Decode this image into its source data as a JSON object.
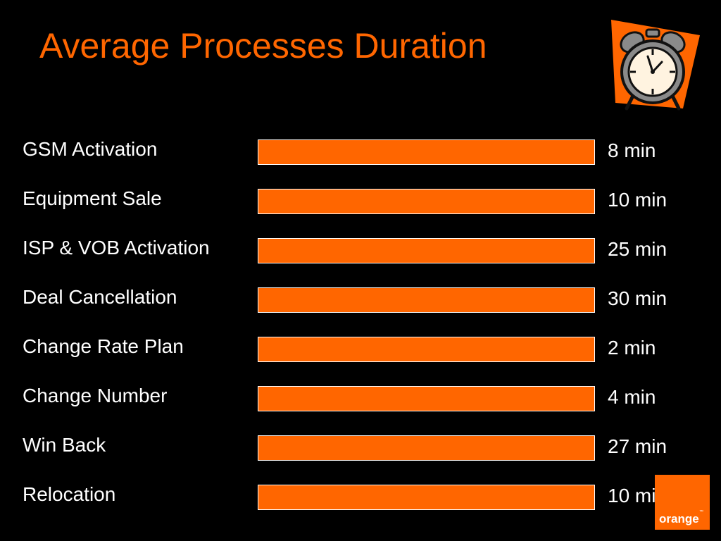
{
  "slide": {
    "title": "Average Processes Duration"
  },
  "chart_data": {
    "type": "table",
    "rows": [
      {
        "process": "GSM Activation",
        "duration": "8 min"
      },
      {
        "process": "Equipment Sale",
        "duration": "10 min"
      },
      {
        "process": "ISP & VOB Activation",
        "duration": "25 min"
      },
      {
        "process": "Deal Cancellation",
        "duration": "30 min"
      },
      {
        "process": "Change Rate Plan",
        "duration": "2 min"
      },
      {
        "process": "Change Number",
        "duration": "4 min"
      },
      {
        "process": "Win Back",
        "duration": "27 min"
      },
      {
        "process": "Relocation",
        "duration": "10 min"
      }
    ]
  },
  "logo": {
    "text": "orange",
    "trademark": "™"
  },
  "colors": {
    "accent": "#FF6600",
    "background": "#000000",
    "text": "#FFFFFF"
  },
  "icons": {
    "clock": "alarm-clock-icon"
  }
}
